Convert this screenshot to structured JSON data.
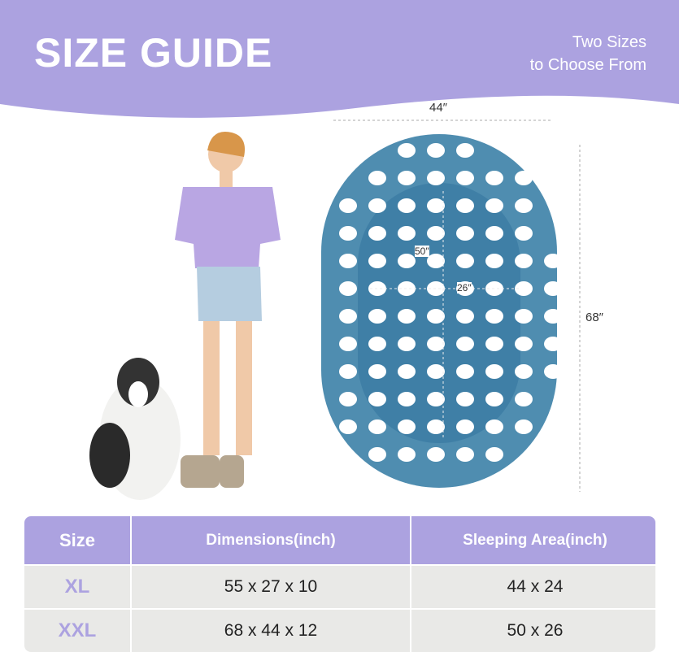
{
  "header": {
    "title": "SIZE GUIDE",
    "subtitle_line1": "Two Sizes",
    "subtitle_line2": "to Choose From"
  },
  "colors": {
    "brand": "#aca2e0",
    "bed": "#4f8db0",
    "row": "#e9e9e7"
  },
  "dimensions": {
    "outer_width": "44″",
    "outer_length": "68″",
    "inner_length": "50″",
    "inner_width": "26″"
  },
  "table": {
    "headers": [
      "Size",
      "Dimensions(inch)",
      "Sleeping Area(inch)"
    ],
    "rows": [
      {
        "size": "XL",
        "dimensions": "55 x 27 x 10",
        "sleeping_area": "44 x 24"
      },
      {
        "size": "XXL",
        "dimensions": "68 x 44 x 12",
        "sleeping_area": "50 x 26"
      }
    ]
  }
}
